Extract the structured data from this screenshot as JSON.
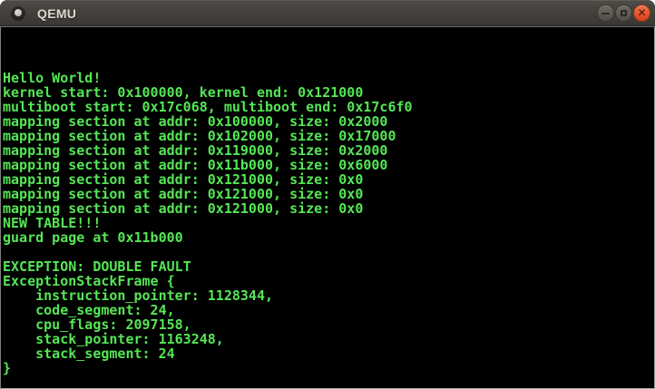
{
  "window": {
    "title": "QEMU"
  },
  "titlebar": {
    "icon": "qemu-app-icon",
    "buttons": [
      {
        "name": "minimize",
        "glyph": "minus"
      },
      {
        "name": "maximize",
        "glyph": "square"
      },
      {
        "name": "close",
        "glyph": "x",
        "close_glyph_char": "✕"
      }
    ]
  },
  "colors": {
    "console_text": "#55e655",
    "console_background": "#000000",
    "titlebar_top": "#4e4c47",
    "titlebar_bottom": "#3a3834",
    "title_text": "#dedad2",
    "close_button": "#dd4f27",
    "window_button_gray": "#514f49",
    "screen_border": "#8c8c8c"
  },
  "console": {
    "columns": 80,
    "rows": 25,
    "lines": [
      "",
      "",
      "",
      "Hello World!",
      "kernel start: 0x100000, kernel end: 0x121000",
      "multiboot start: 0x17c068, multiboot end: 0x17c6f0",
      "mapping section at addr: 0x100000, size: 0x2000",
      "mapping section at addr: 0x102000, size: 0x17000",
      "mapping section at addr: 0x119000, size: 0x2000",
      "mapping section at addr: 0x11b000, size: 0x6000",
      "mapping section at addr: 0x121000, size: 0x0",
      "mapping section at addr: 0x121000, size: 0x0",
      "mapping section at addr: 0x121000, size: 0x0",
      "NEW TABLE!!!",
      "guard page at 0x11b000",
      "",
      "EXCEPTION: DOUBLE FAULT",
      "ExceptionStackFrame {",
      "    instruction_pointer: 1128344,",
      "    code_segment: 24,",
      "    cpu_flags: 2097158,",
      "    stack_pointer: 1163248,",
      "    stack_segment: 24",
      "}",
      ""
    ]
  }
}
